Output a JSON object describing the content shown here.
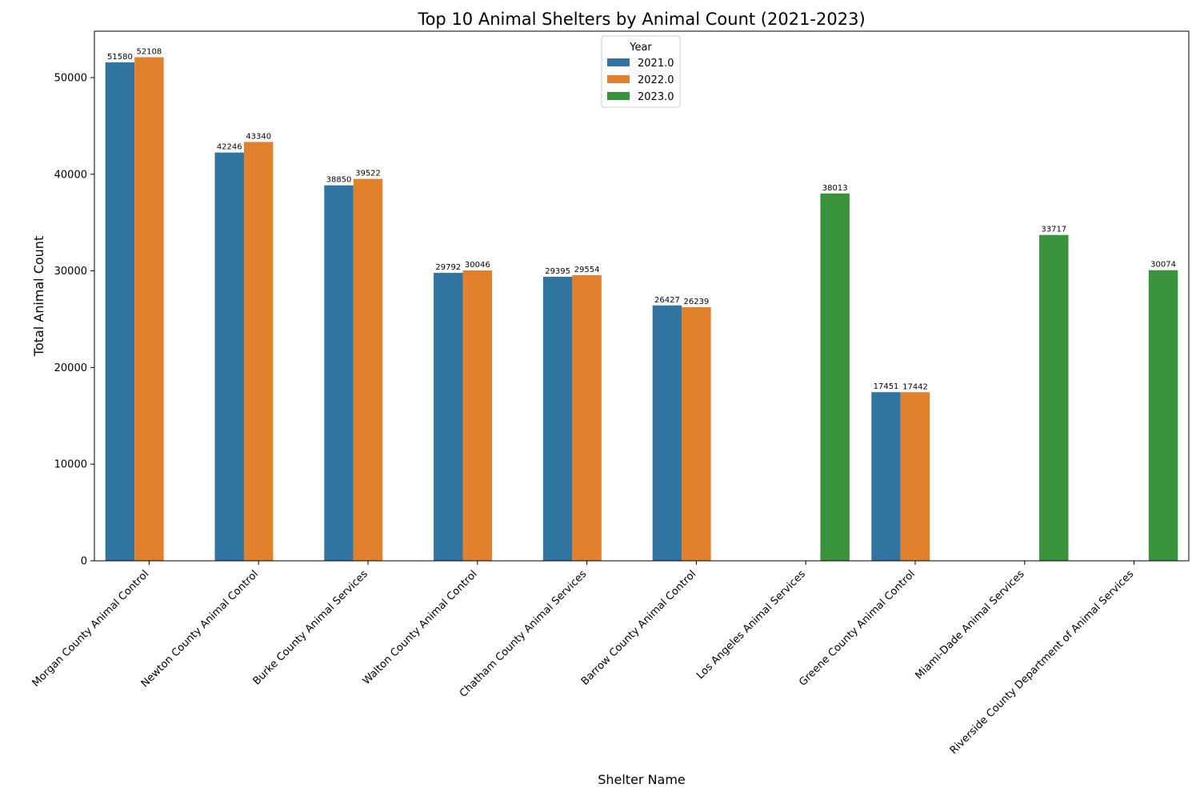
{
  "chart_data": {
    "type": "bar",
    "title": "Top 10 Animal Shelters by Animal Count (2021-2023)",
    "xlabel": "Shelter Name",
    "ylabel": "Total Animal Count",
    "ylim": [
      0,
      54800
    ],
    "yticks": [
      0,
      10000,
      20000,
      30000,
      40000,
      50000
    ],
    "grid": false,
    "legend": {
      "title": "Year",
      "placement": "top-center"
    },
    "categories": [
      "Morgan County Animal Control",
      "Newton County Animal Control",
      "Burke County Animal Services",
      "Walton County Animal Control",
      "Chatham County Animal Services",
      "Barrow County Animal Control",
      "Los Angeles Animal Services",
      "Greene County Animal Control",
      "Miami-Dade Animal Services",
      "Riverside County Department of Animal Services"
    ],
    "series": [
      {
        "name": "2021.0",
        "color": "#3274a1",
        "values": [
          51580,
          42246,
          38850,
          29792,
          29395,
          26427,
          null,
          17451,
          null,
          null
        ]
      },
      {
        "name": "2022.0",
        "color": "#e1812c",
        "values": [
          52108,
          43340,
          39522,
          30046,
          29554,
          26239,
          null,
          17442,
          null,
          null
        ]
      },
      {
        "name": "2023.0",
        "color": "#3a923a",
        "values": [
          null,
          null,
          null,
          null,
          null,
          null,
          38013,
          null,
          33717,
          30074
        ]
      }
    ]
  }
}
